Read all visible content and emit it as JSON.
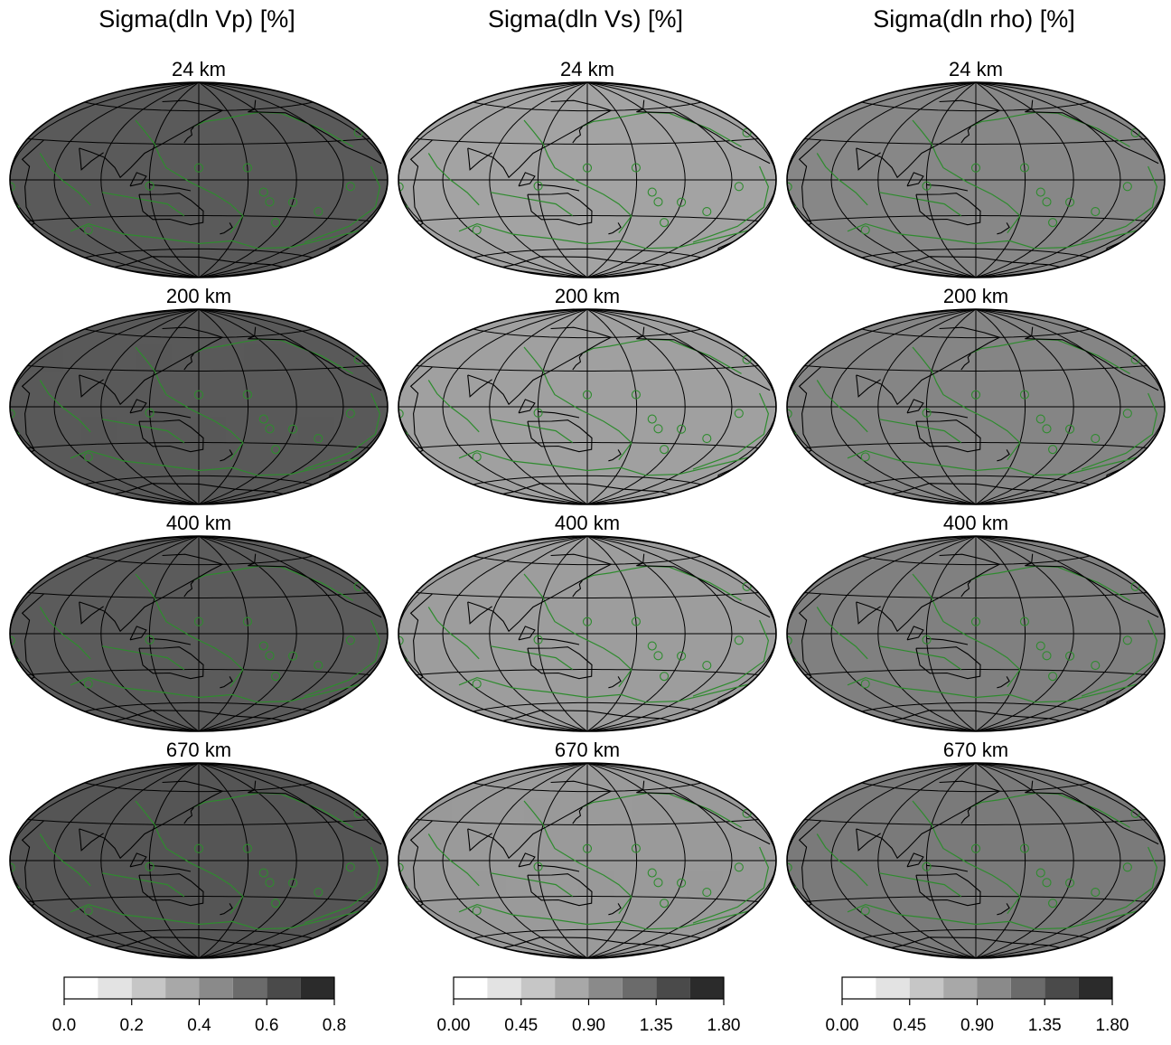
{
  "columns": [
    {
      "title": "Sigma(dln Vp)  [%]",
      "shade": [
        "#5a5a5a",
        "#595959",
        "#5b5b5b",
        "#555555"
      ],
      "colorbar_ticks": [
        "0.0",
        "0.2",
        "0.4",
        "0.6",
        "0.8"
      ]
    },
    {
      "title": "Sigma(dln Vs) [%]",
      "shade": [
        "#a3a3a3",
        "#a0a0a0",
        "#9d9d9d",
        "#9a9a9a"
      ],
      "colorbar_ticks": [
        "0.00",
        "0.45",
        "0.90",
        "1.35",
        "1.80"
      ]
    },
    {
      "title": "Sigma(dln rho) [%]",
      "shade": [
        "#878787",
        "#858585",
        "#808080",
        "#7a7a7a"
      ],
      "colorbar_ticks": [
        "0.00",
        "0.45",
        "0.90",
        "1.35",
        "1.80"
      ]
    }
  ],
  "rows": [
    {
      "label": "24 km"
    },
    {
      "label": "200 km"
    },
    {
      "label": "400 km"
    },
    {
      "label": "670 km"
    }
  ],
  "colorbar_steps": [
    "#ffffff",
    "#e3e3e3",
    "#c6c6c6",
    "#a8a8a8",
    "#8a8a8a",
    "#6b6b6b",
    "#4a4a4a",
    "#2b2b2b",
    "#050505"
  ],
  "colors": {
    "grid": "#000000",
    "plate_boundary": "#2e8b2e",
    "coast": "#000000"
  }
}
